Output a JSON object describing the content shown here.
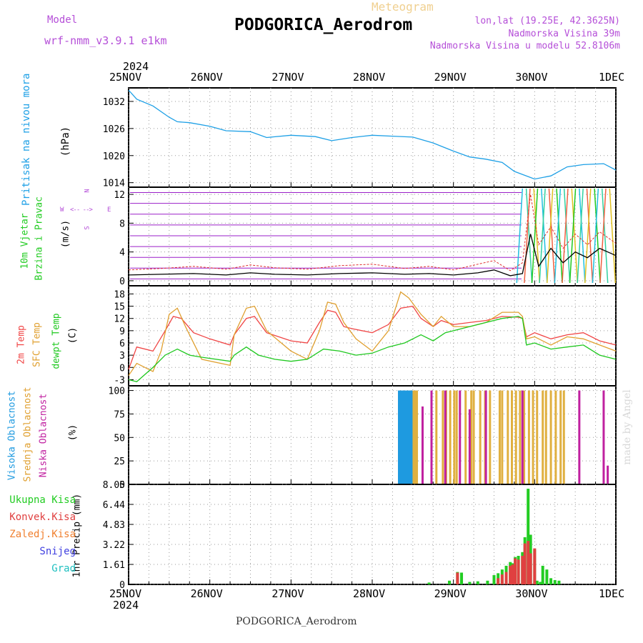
{
  "header": {
    "model_label": "Model",
    "model_name": "wrf-nmm_v3.9.1  e1km",
    "subtitle": "Meteogram",
    "station": "PODGORICA_Aerodrom",
    "lonlat": "lon,lat (19.25E, 42.3625N)",
    "altitude": "Nadmorska Visina 39m",
    "model_altitude": "Nadmorska Visina u modelu 52.8106m",
    "credit": "made by Angel"
  },
  "time_axis": {
    "year_top": "2024",
    "year_bottom": "2024",
    "ticks": [
      "25NOV",
      "26NOV",
      "27NOV",
      "28NOV",
      "29NOV",
      "30NOV",
      "1DEC"
    ],
    "footer_station": "PODGORICA_Aerodrom"
  },
  "panels": {
    "pressure": {
      "label": "Pritisak na nivou mora",
      "unit": "(hPa)"
    },
    "wind": {
      "label1": "10m Vjetar",
      "label2": "Brzina i Pravac",
      "unit": "(m/s)",
      "compass": {
        "n": "N",
        "s": "S",
        "e": "E",
        "w": "W"
      }
    },
    "temp": {
      "label1": "2m Temp",
      "label2": "SFC Temp",
      "label3": "dewpt Temp",
      "unit": "(C)"
    },
    "cloud": {
      "label1": "Visoka Oblacnost",
      "label2": "Srednja Oblacnost",
      "label3": "Niska Oblacnost",
      "unit": "(%)"
    },
    "precip": {
      "unit": "1hr Precip (mm)",
      "legend": [
        "Ukupna Kisa",
        "Konvek.Kisa",
        "Zaledj.Kisa",
        "Snijeg",
        "Grad"
      ]
    }
  },
  "colors": {
    "pressure": "#1ea0e6",
    "wind_barb": "#9a1fc8",
    "wind_max": "#e03030",
    "wind_speed": "#000000",
    "t2m": "#f04545",
    "tsfc": "#e0a030",
    "dewpt": "#1ec81e",
    "cloud_high": "#1e9ae0",
    "cloud_mid": "#e0b040",
    "cloud_low": "#c020a0",
    "precip_total": "#22cc22",
    "precip_conv": "#e04040",
    "precip_frz": "#f08030",
    "snow": "#4040e0",
    "hail": "#20c0c0",
    "label_pressure": "#1ea0e6",
    "label_wind": "#22cc22",
    "label_temp1": "#f04545",
    "label_temp2": "#e0a030",
    "label_temp3": "#1ec81e",
    "label_cloud1": "#1e9ae0",
    "label_cloud2": "#e0a030",
    "label_cloud3": "#c020a0"
  },
  "chart_data": [
    {
      "type": "line",
      "title": "",
      "ylabel": "(hPa)",
      "ylim": [
        1013,
        1035
      ],
      "yticks": [
        1014,
        1020,
        1026,
        1032
      ],
      "x_unit": "days since 25NOV 00UTC",
      "series": [
        {
          "name": "Pritisak na nivou mora",
          "x": [
            0,
            0.1,
            0.3,
            0.5,
            0.6,
            0.75,
            1.0,
            1.2,
            1.5,
            1.7,
            2.0,
            2.3,
            2.5,
            2.75,
            3.0,
            3.25,
            3.5,
            3.75,
            4.0,
            4.2,
            4.4,
            4.6,
            4.75,
            5.0,
            5.2,
            5.4,
            5.6,
            5.85,
            6.0
          ],
          "y": [
            1034.5,
            1032.5,
            1031,
            1028.5,
            1027.5,
            1027.3,
            1026.5,
            1025.5,
            1025.3,
            1024,
            1024.5,
            1024.2,
            1023.3,
            1024,
            1024.5,
            1024.3,
            1024.1,
            1022.8,
            1021,
            1019.7,
            1019.2,
            1018.5,
            1016.5,
            1014.8,
            1015.5,
            1017.5,
            1018,
            1018.2,
            1016.8
          ]
        }
      ]
    },
    {
      "type": "line",
      "title": "",
      "ylabel": "(m/s)",
      "ylim": [
        -0.7,
        13
      ],
      "yticks": [
        0,
        4,
        8,
        12
      ],
      "x_unit": "days since 25NOV 00UTC",
      "series": [
        {
          "name": "wind speed",
          "x": [
            0,
            0.4,
            0.8,
            1.2,
            1.5,
            1.8,
            2.2,
            2.6,
            3.0,
            3.4,
            3.7,
            4.0,
            4.3,
            4.5,
            4.7,
            4.85,
            4.95,
            5.05,
            5.2,
            5.35,
            5.5,
            5.65,
            5.8,
            6.0
          ],
          "y": [
            0.8,
            0.9,
            1.0,
            0.8,
            1.1,
            0.9,
            0.8,
            1.0,
            1.1,
            0.9,
            1.0,
            0.8,
            1.1,
            1.5,
            0.7,
            1.0,
            6.5,
            2.0,
            4.5,
            2.5,
            4.0,
            3.2,
            4.5,
            3.5
          ]
        },
        {
          "name": "max wind",
          "x": [
            0,
            0.4,
            0.8,
            1.2,
            1.5,
            1.8,
            2.2,
            2.6,
            3.0,
            3.4,
            3.7,
            4.0,
            4.3,
            4.5,
            4.7,
            4.85,
            4.95,
            5.05,
            5.2,
            5.35,
            5.5,
            5.65,
            5.8,
            6.0
          ],
          "y": [
            1.5,
            1.7,
            2.0,
            1.6,
            2.2,
            1.8,
            1.6,
            2.1,
            2.3,
            1.7,
            2.0,
            1.5,
            2.3,
            2.8,
            1.4,
            2.5,
            12,
            5.0,
            7.5,
            4.5,
            6.5,
            5.0,
            6.8,
            5.2
          ]
        }
      ]
    },
    {
      "type": "line",
      "title": "",
      "ylabel": "(C)",
      "ylim": [
        -4.5,
        20
      ],
      "yticks": [
        -3,
        0,
        3,
        6,
        9,
        12,
        15,
        18
      ],
      "x_unit": "days since 25NOV 00UTC",
      "series": [
        {
          "name": "2m Temp",
          "x": [
            0,
            0.1,
            0.3,
            0.45,
            0.55,
            0.65,
            0.8,
            1.0,
            1.25,
            1.3,
            1.45,
            1.55,
            1.7,
            2.0,
            2.2,
            2.35,
            2.45,
            2.55,
            2.65,
            2.75,
            3.0,
            3.2,
            3.35,
            3.5,
            3.6,
            3.75,
            3.85,
            4.0,
            4.2,
            4.4,
            4.6,
            4.8,
            4.85,
            4.9,
            5.0,
            5.2,
            5.4,
            5.6,
            5.8,
            6.0
          ],
          "y": [
            -0.5,
            5,
            4,
            9,
            12.5,
            12,
            8.5,
            7,
            5.5,
            8,
            12,
            12.5,
            8.5,
            6.5,
            6,
            11,
            14,
            13.5,
            10,
            9.5,
            8.5,
            10.5,
            14.5,
            15,
            12,
            10,
            11.5,
            10.5,
            11,
            11.5,
            12.5,
            12.3,
            12,
            7.5,
            8.5,
            7,
            8,
            8.5,
            6.5,
            5.5
          ]
        },
        {
          "name": "SFC Temp",
          "x": [
            0,
            0.1,
            0.3,
            0.4,
            0.5,
            0.6,
            0.7,
            0.9,
            1.25,
            1.3,
            1.45,
            1.55,
            1.7,
            2.0,
            2.2,
            2.35,
            2.45,
            2.55,
            2.65,
            2.8,
            3.0,
            3.2,
            3.35,
            3.45,
            3.6,
            3.75,
            3.85,
            4.0,
            4.2,
            4.4,
            4.6,
            4.8,
            4.85,
            4.9,
            5.0,
            5.2,
            5.4,
            5.6,
            5.8,
            6.0
          ],
          "y": [
            -2,
            1,
            -1,
            4,
            13,
            14.5,
            10,
            2,
            0.5,
            8,
            14.5,
            15,
            9,
            4,
            2,
            9,
            16,
            15.5,
            11,
            7,
            4,
            9,
            18.5,
            17,
            13,
            10,
            12.5,
            10,
            10,
            11,
            13.5,
            13.5,
            12.5,
            7,
            7.5,
            5.5,
            7.5,
            7,
            5.5,
            4
          ]
        },
        {
          "name": "dewpt Temp",
          "x": [
            0,
            0.1,
            0.3,
            0.45,
            0.6,
            0.75,
            0.9,
            1.25,
            1.3,
            1.45,
            1.6,
            1.8,
            2.0,
            2.2,
            2.4,
            2.6,
            2.8,
            3.0,
            3.2,
            3.4,
            3.6,
            3.75,
            3.9,
            4.0,
            4.2,
            4.4,
            4.6,
            4.8,
            4.85,
            4.9,
            5.0,
            5.2,
            5.4,
            5.6,
            5.8,
            6.0
          ],
          "y": [
            -3,
            -3.5,
            0,
            3,
            4.5,
            3,
            2.5,
            1.5,
            3,
            5,
            3,
            2,
            1.5,
            2,
            4.5,
            4,
            3,
            3.5,
            5,
            6,
            8,
            6.5,
            8.5,
            9,
            10,
            11,
            12,
            12.5,
            12,
            5.5,
            6,
            4.5,
            5,
            5.5,
            3,
            2
          ]
        }
      ]
    },
    {
      "type": "bar",
      "title": "",
      "ylabel": "(%)",
      "ylim": [
        0,
        105
      ],
      "yticks": [
        0,
        25,
        50,
        75,
        100
      ],
      "x_unit": "days since 25NOV 00UTC",
      "series": [
        {
          "name": "Visoka Oblacnost",
          "x": [
            3.33,
            3.35,
            3.37,
            3.39,
            3.41,
            3.43,
            3.45,
            3.47,
            3.49
          ],
          "y": [
            100,
            100,
            100,
            100,
            100,
            100,
            100,
            100,
            100
          ]
        },
        {
          "name": "Srednja Oblacnost",
          "x": [
            3.51,
            3.53,
            3.55,
            3.79,
            3.87,
            3.91,
            3.96,
            4.01,
            4.04,
            4.15,
            4.22,
            4.25,
            4.33,
            4.39,
            4.45,
            4.57,
            4.6,
            4.67,
            4.72,
            4.77,
            4.82,
            4.87,
            4.93,
            4.98,
            5.03,
            5.1,
            5.14,
            5.2,
            5.26,
            5.32,
            5.36
          ],
          "y": [
            100,
            100,
            100,
            100,
            100,
            100,
            100,
            100,
            100,
            100,
            100,
            100,
            100,
            100,
            100,
            100,
            100,
            100,
            100,
            100,
            100,
            100,
            100,
            100,
            100,
            100,
            100,
            100,
            100,
            100,
            100
          ]
        },
        {
          "name": "Niska Oblacnost",
          "x": [
            3.62,
            3.73,
            3.9,
            4.08,
            4.2,
            4.4,
            4.85,
            5.55,
            5.85,
            5.9
          ],
          "y": [
            83,
            100,
            100,
            100,
            80,
            100,
            100,
            100,
            100,
            20
          ]
        }
      ]
    },
    {
      "type": "bar",
      "title": "",
      "ylabel": "1hr Precip (mm)",
      "ylim": [
        0,
        8.05
      ],
      "yticks": [
        0,
        1.61,
        3.22,
        4.83,
        6.44,
        8.05
      ],
      "x_unit": "days since 25NOV 00UTC",
      "series": [
        {
          "name": "Ukupna Kisa",
          "x": [
            3.7,
            3.95,
            4.05,
            4.1,
            4.2,
            4.3,
            4.42,
            4.5,
            4.55,
            4.6,
            4.65,
            4.7,
            4.73,
            4.76,
            4.8,
            4.85,
            4.88,
            4.92,
            4.95,
            5.0,
            5.03,
            5.07,
            5.1,
            5.15,
            5.2,
            5.25,
            5.3
          ],
          "y": [
            0.15,
            0.3,
            1.0,
            0.95,
            0.2,
            0.25,
            0.3,
            0.75,
            0.9,
            1.2,
            1.5,
            1.8,
            1.7,
            2.2,
            2.3,
            2.6,
            3.8,
            7.7,
            4.0,
            2.8,
            0.3,
            0.2,
            1.5,
            1.2,
            0.5,
            0.35,
            0.3
          ]
        },
        {
          "name": "Konvek.Kisa",
          "x": [
            4.05,
            4.55,
            4.6,
            4.65,
            4.7,
            4.73,
            4.76,
            4.8,
            4.85,
            4.88,
            4.92,
            4.95,
            5.0
          ],
          "y": [
            0.95,
            0.5,
            0.8,
            1.0,
            1.5,
            1.6,
            2.1,
            2.0,
            2.3,
            3.3,
            3.5,
            2.5,
            2.9
          ]
        }
      ]
    }
  ]
}
